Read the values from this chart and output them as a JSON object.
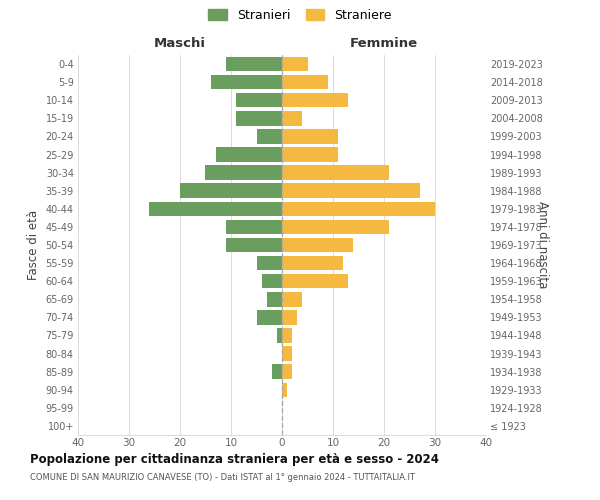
{
  "age_groups": [
    "100+",
    "95-99",
    "90-94",
    "85-89",
    "80-84",
    "75-79",
    "70-74",
    "65-69",
    "60-64",
    "55-59",
    "50-54",
    "45-49",
    "40-44",
    "35-39",
    "30-34",
    "25-29",
    "20-24",
    "15-19",
    "10-14",
    "5-9",
    "0-4"
  ],
  "birth_years": [
    "≤ 1923",
    "1924-1928",
    "1929-1933",
    "1934-1938",
    "1939-1943",
    "1944-1948",
    "1949-1953",
    "1954-1958",
    "1959-1963",
    "1964-1968",
    "1969-1973",
    "1974-1978",
    "1979-1983",
    "1984-1988",
    "1989-1993",
    "1994-1998",
    "1999-2003",
    "2004-2008",
    "2009-2013",
    "2014-2018",
    "2019-2023"
  ],
  "males": [
    0,
    0,
    0,
    2,
    0,
    1,
    5,
    3,
    4,
    5,
    11,
    11,
    26,
    20,
    15,
    13,
    5,
    9,
    9,
    14,
    11
  ],
  "females": [
    0,
    0,
    1,
    2,
    2,
    2,
    3,
    4,
    13,
    12,
    14,
    21,
    30,
    27,
    21,
    11,
    11,
    4,
    13,
    9,
    5
  ],
  "male_color": "#6a9e5e",
  "female_color": "#f5b942",
  "background_color": "#ffffff",
  "grid_color": "#cccccc",
  "title": "Popolazione per cittadinanza straniera per età e sesso - 2024",
  "subtitle": "COMUNE DI SAN MAURIZIO CANAVESE (TO) - Dati ISTAT al 1° gennaio 2024 - TUTTAITALIA.IT",
  "xlabel_left": "Maschi",
  "xlabel_right": "Femmine",
  "ylabel_left": "Fasce di età",
  "ylabel_right": "Anni di nascita",
  "legend_male": "Stranieri",
  "legend_female": "Straniere",
  "xlim": 40,
  "bar_height": 0.8
}
